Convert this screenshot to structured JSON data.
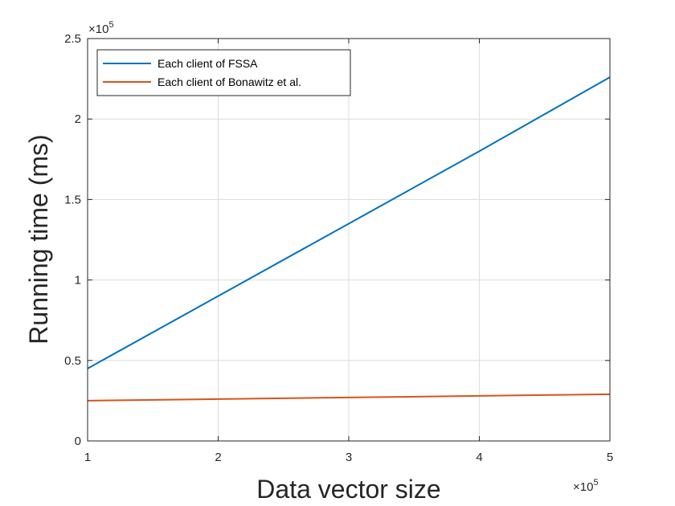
{
  "chart_data": {
    "type": "line",
    "title": "",
    "xlabel": "Data vector size",
    "ylabel": "Running time (ms)",
    "x_exponent_label": "×10",
    "x_exponent_power": "5",
    "y_exponent_label": "×10",
    "y_exponent_power": "5",
    "xlim": [
      1,
      5
    ],
    "ylim": [
      0,
      2.5
    ],
    "x_ticks": [
      "1",
      "2",
      "3",
      "4",
      "5"
    ],
    "y_ticks": [
      "0",
      "0.5",
      "1",
      "1.5",
      "2",
      "2.5"
    ],
    "x_tick_values": [
      1,
      2,
      3,
      4,
      5
    ],
    "y_tick_values": [
      0,
      0.5,
      1,
      1.5,
      2,
      2.5
    ],
    "grid": true,
    "legend_position": "top-left",
    "series": [
      {
        "name": "Each client of FSSA",
        "color": "#0072BD",
        "x": [
          1,
          2,
          3,
          4,
          5
        ],
        "y": [
          0.45,
          0.9,
          1.35,
          1.8,
          2.26
        ]
      },
      {
        "name": "Each client of Bonawitz et al.",
        "color": "#D95319",
        "x": [
          1,
          2,
          3,
          4,
          5
        ],
        "y": [
          0.25,
          0.26,
          0.27,
          0.28,
          0.29
        ]
      }
    ]
  }
}
